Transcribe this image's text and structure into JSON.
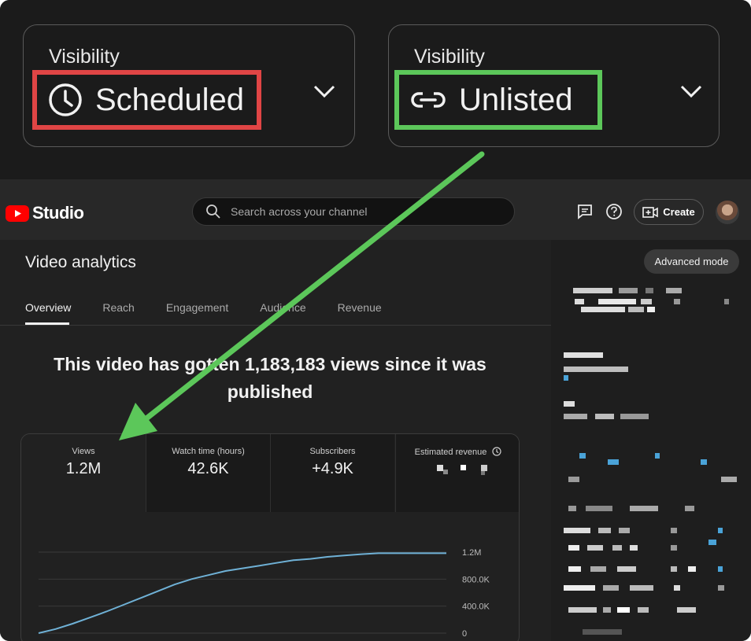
{
  "visibility": {
    "left": {
      "label": "Visibility",
      "value": "Scheduled",
      "icon": "clock-icon",
      "highlight": "#e04545"
    },
    "right": {
      "label": "Visibility",
      "value": "Unlisted",
      "icon": "link-icon",
      "highlight": "#5cc75a"
    }
  },
  "header": {
    "logo_text": "Studio",
    "search_placeholder": "Search across your channel",
    "create_label": "Create"
  },
  "page": {
    "title": "Video analytics",
    "advanced_mode": "Advanced mode",
    "tabs": [
      "Overview",
      "Reach",
      "Engagement",
      "Audience",
      "Revenue"
    ],
    "active_tab": "Overview",
    "headline": "This video has gotten 1,183,183 views since it was published"
  },
  "metrics": [
    {
      "label": "Views",
      "value": "1.2M"
    },
    {
      "label": "Watch time (hours)",
      "value": "42.6K"
    },
    {
      "label": "Subscribers",
      "value": "+4.9K"
    },
    {
      "label": "Estimated revenue",
      "value": ""
    }
  ],
  "chart_data": {
    "type": "line",
    "title": "",
    "xlabel": "",
    "ylabel": "",
    "ylim": [
      0,
      1200000
    ],
    "y_ticks": [
      "1.2M",
      "800.0K",
      "400.0K",
      "0"
    ],
    "series": [
      {
        "values": [
          0,
          60000,
          140000,
          230000,
          320000,
          420000,
          520000,
          620000,
          720000,
          800000,
          860000,
          920000,
          960000,
          1000000,
          1040000,
          1080000,
          1100000,
          1130000,
          1150000,
          1170000,
          1183183,
          1183183,
          1183183,
          1183183,
          1183183
        ]
      }
    ],
    "color": "#6fb1d6"
  },
  "colors": {
    "annotation_arrow": "#5cc75a",
    "youtube_red": "#ff0000"
  }
}
